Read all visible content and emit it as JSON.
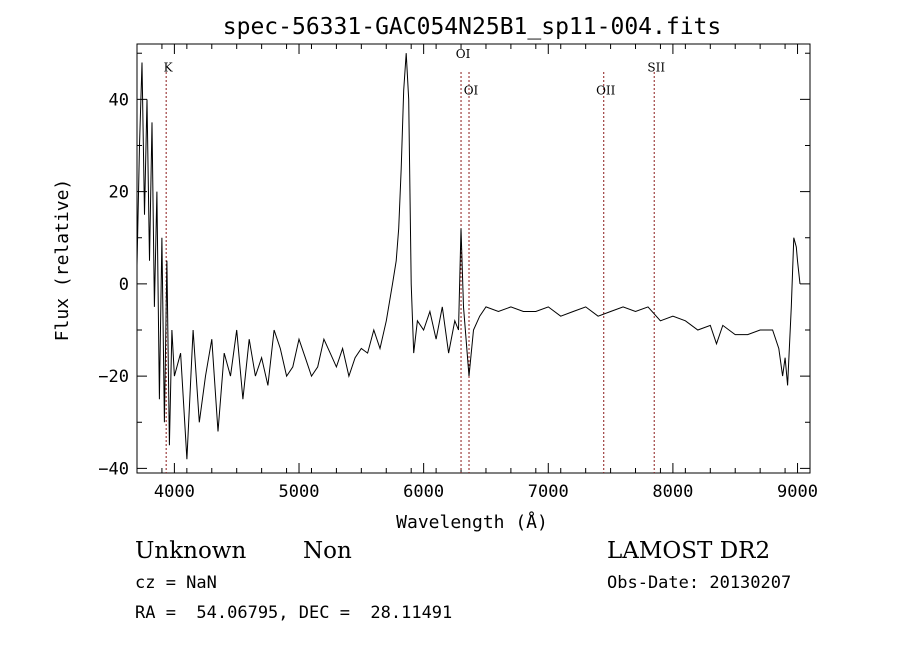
{
  "chart_data": {
    "type": "line",
    "title": "spec-56331-GAC054N25B1_sp11-004.fits",
    "xlabel": "Wavelength (Å)",
    "ylabel": "Flux (relative)",
    "xlim": [
      3700,
      9100
    ],
    "ylim": [
      -41,
      52
    ],
    "xticks": [
      4000,
      5000,
      6000,
      7000,
      8000,
      9000
    ],
    "yticks": [
      -40,
      -20,
      0,
      20,
      40
    ],
    "grid": false,
    "line_color": "#000000",
    "marker_color": "#8b1a1a",
    "lines": [
      {
        "label": "K",
        "wavelength": 3934,
        "label_y": 46
      },
      {
        "label": "OI",
        "wavelength": 6300,
        "label_y": 49
      },
      {
        "label": "OI",
        "wavelength": 6364,
        "label_y": 41
      },
      {
        "label": "OII",
        "wavelength": 7445,
        "label_y": 41
      },
      {
        "label": "SII",
        "wavelength": 7850,
        "label_y": 46
      }
    ],
    "series": [
      {
        "x": [
          3700,
          3720,
          3740,
          3760,
          3780,
          3800,
          3820,
          3840,
          3860,
          3880,
          3900,
          3920,
          3940,
          3960,
          3980,
          4000,
          4050,
          4100,
          4150,
          4200,
          4250,
          4300,
          4350,
          4400,
          4450,
          4500,
          4550,
          4600,
          4650,
          4700,
          4750,
          4800,
          4850,
          4900,
          4950,
          5000,
          5050,
          5100,
          5150,
          5200,
          5250,
          5300,
          5350,
          5400,
          5450,
          5500,
          5550,
          5600,
          5650,
          5700,
          5750,
          5780,
          5800,
          5820,
          5840,
          5860,
          5880,
          5900,
          5920,
          5950,
          6000,
          6050,
          6100,
          6150,
          6200,
          6250,
          6280,
          6300,
          6320,
          6364,
          6400,
          6450,
          6500,
          6600,
          6700,
          6800,
          6900,
          7000,
          7100,
          7200,
          7300,
          7400,
          7500,
          7600,
          7700,
          7800,
          7900,
          8000,
          8100,
          8200,
          8300,
          8350,
          8400,
          8500,
          8600,
          8700,
          8800,
          8850,
          8880,
          8900,
          8920,
          8950,
          8970,
          8990,
          9000,
          9020
        ],
        "y": [
          4,
          30,
          48,
          15,
          40,
          5,
          35,
          -5,
          20,
          -25,
          10,
          -30,
          5,
          -35,
          -10,
          -20,
          -15,
          -38,
          -10,
          -30,
          -20,
          -12,
          -32,
          -15,
          -20,
          -10,
          -25,
          -12,
          -20,
          -16,
          -22,
          -10,
          -14,
          -20,
          -18,
          -12,
          -16,
          -20,
          -18,
          -12,
          -15,
          -18,
          -14,
          -20,
          -16,
          -14,
          -15,
          -10,
          -14,
          -8,
          0,
          5,
          12,
          25,
          42,
          50,
          40,
          0,
          -15,
          -8,
          -10,
          -6,
          -12,
          -5,
          -15,
          -8,
          -10,
          12,
          -5,
          -20,
          -10,
          -7,
          -5,
          -6,
          -5,
          -6,
          -6,
          -5,
          -7,
          -6,
          -5,
          -7,
          -6,
          -5,
          -6,
          -5,
          -8,
          -7,
          -8,
          -10,
          -9,
          -13,
          -9,
          -11,
          -11,
          -10,
          -10,
          -14,
          -20,
          -16,
          -22,
          -5,
          10,
          8,
          5,
          0
        ]
      }
    ]
  },
  "info": {
    "class": "Unknown",
    "subclass": "Non",
    "survey": "LAMOST DR2",
    "cz": "cz = NaN",
    "obsdate": "Obs-Date: 20130207",
    "radec": "RA =  54.06795, DEC =  28.11491"
  }
}
